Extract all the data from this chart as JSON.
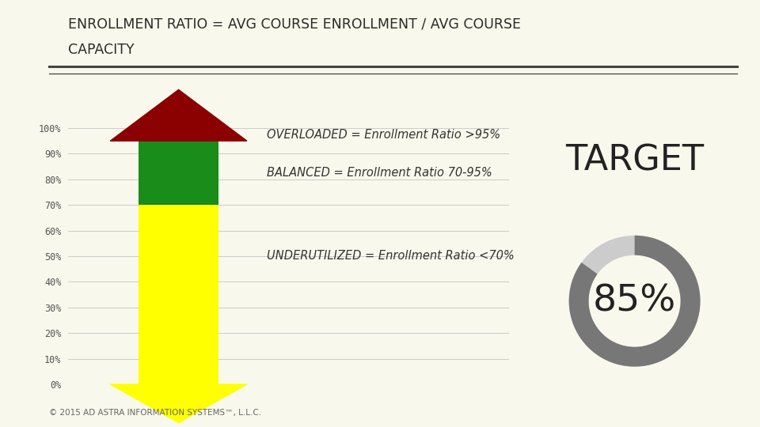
{
  "background_color": "#F8F8EC",
  "title_line1": "ENROLLMENT RATIO = AVG COURSE ENROLLMENT / AVG COURSE",
  "title_line2": "CAPACITY",
  "title_fontsize": 12.5,
  "title_color": "#2a2a2a",
  "separator_color": "#444444",
  "ytick_labels": [
    "0%",
    "10%",
    "20%",
    "30%",
    "40%",
    "50%",
    "60%",
    "70%",
    "80%",
    "90%",
    "100%"
  ],
  "ytick_values": [
    0,
    10,
    20,
    30,
    40,
    50,
    60,
    70,
    80,
    90,
    100
  ],
  "grid_color": "#cccccc",
  "overloaded_color": "#8B0000",
  "balanced_color": "#1a8c1a",
  "underutilized_color": "#ffff00",
  "label_overloaded": "OVERLOADED = Enrollment Ratio >95%",
  "label_balanced": "BALANCED = Enrollment Ratio 70-95%",
  "label_underutilized": "UNDERUTILIZED = Enrollment Ratio <70%",
  "label_fontsize": 10.5,
  "label_color": "#333333",
  "target_label": "TARGET",
  "target_value": "85%",
  "target_label_fontsize": 32,
  "target_value_fontsize": 34,
  "target_color": "#222222",
  "donut_color_filled": "#777777",
  "donut_color_empty": "#cccccc",
  "donut_fill_ratio": 0.85,
  "footer_text": "© 2015 AD ASTRA INFORMATION SYSTEMS™, L.L.C.",
  "footer_fontsize": 7.5,
  "footer_color": "#666666"
}
